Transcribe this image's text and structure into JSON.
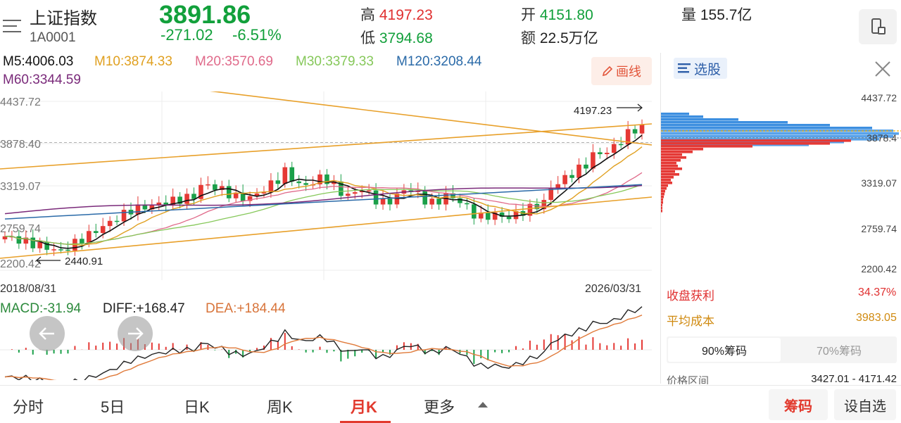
{
  "header": {
    "name": "上证指数",
    "code": "1A0001",
    "price": "3891.86",
    "change": "-271.02",
    "change_pct": "-6.51%",
    "high_label": "高",
    "high": "4197.23",
    "low_label": "低",
    "low": "3794.68",
    "open_label": "开",
    "open": "4151.80",
    "amount_label": "额",
    "amount": "22.5万亿",
    "volume_label": "量",
    "volume": "155.7亿"
  },
  "ma": {
    "m5": "M5:4006.03",
    "m10": "M10:3874.33",
    "m20": "M20:3570.69",
    "m30": "M30:3379.33",
    "m120": "M120:3208.44",
    "m60": "M60:3344.59"
  },
  "draw_button": "画线",
  "chart": {
    "y_ticks": [
      "4437.72",
      "3878.40",
      "3319.07",
      "2759.74",
      "2200.42"
    ],
    "start_date": "2018/08/31",
    "end_date": "2026/03/31",
    "high_marker": "4197.23",
    "low_marker": "2440.91",
    "colors": {
      "up": "#e53935",
      "down": "#1aa049",
      "m5": "#111111",
      "m10": "#e0a020",
      "m20": "#e06a8a",
      "m30": "#86c85a",
      "m60": "#7a2a7a",
      "m120": "#2a6aa8",
      "trend": "#e8a02a"
    }
  },
  "macd": {
    "macd": "MACD:-31.94",
    "diff": "DIFF:+168.47",
    "dea": "DEA:+184.44"
  },
  "side": {
    "select_label": "选股",
    "ticks": [
      "4437.72",
      "3878.4",
      "3319.07",
      "2759.74",
      "2200.42"
    ],
    "profit_label": "收盘获利",
    "profit_value": "34.37%",
    "cost_label": "平均成本",
    "cost_value": "3983.05",
    "seg_a": "90%筹码",
    "seg_b": "70%筹码",
    "range_label": "价格区间",
    "range_value": "3427.01 - 4171.42"
  },
  "tabs": [
    "分时",
    "5日",
    "日K",
    "周K",
    "月K",
    "更多"
  ],
  "buttons": {
    "chouma": "筹码",
    "zixuan": "设自选"
  }
}
